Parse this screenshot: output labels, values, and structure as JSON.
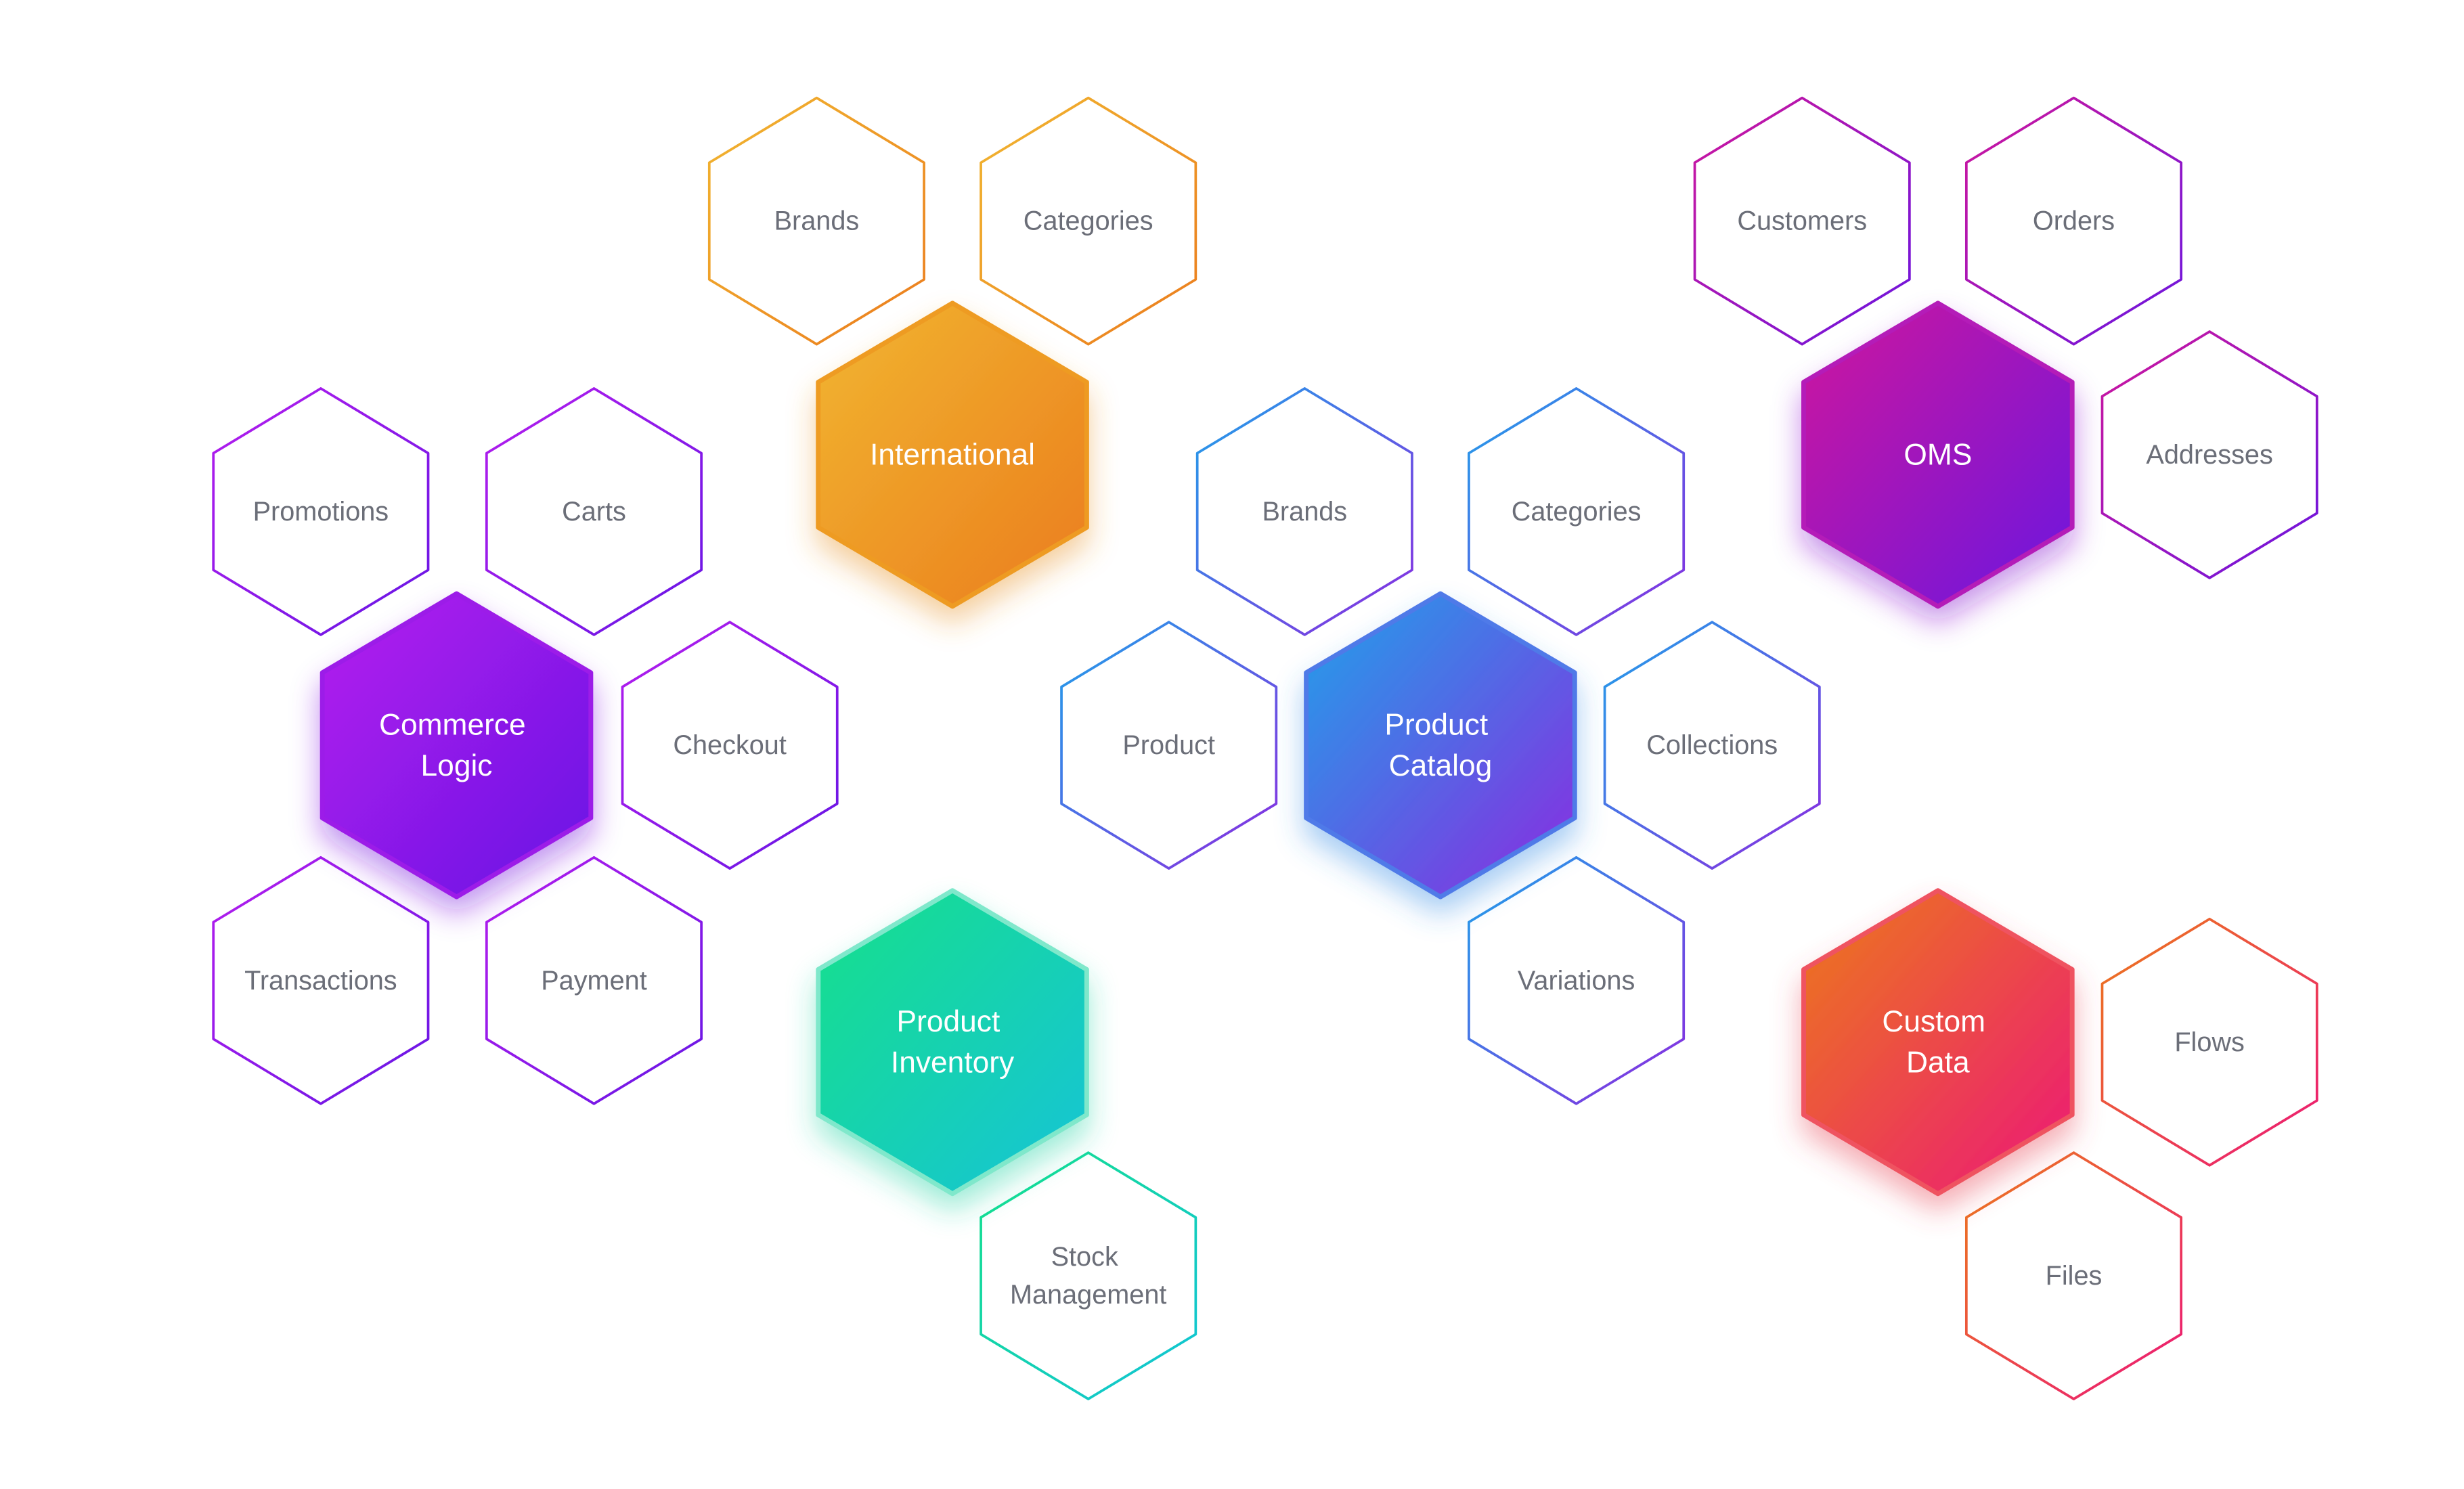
{
  "diagram": {
    "clusters": [
      {
        "id": "international",
        "core": {
          "lines": [
            "International"
          ]
        },
        "colors": {
          "start": "#f1b631",
          "end": "#eb7c1d",
          "border": "#ee9b24",
          "glow": "#e8952a"
        },
        "modules": [
          {
            "id": "intl-brands",
            "lines": [
              "Brands"
            ]
          },
          {
            "id": "intl-categories",
            "lines": [
              "Categories"
            ]
          }
        ]
      },
      {
        "id": "oms",
        "core": {
          "lines": [
            "OMS"
          ]
        },
        "colors": {
          "start": "#d0169c",
          "end": "#6a15e0",
          "border": "#b41ab8",
          "glow": "#8a1fd0"
        },
        "modules": [
          {
            "id": "oms-customers",
            "lines": [
              "Customers"
            ]
          },
          {
            "id": "oms-orders",
            "lines": [
              "Orders"
            ]
          },
          {
            "id": "oms-addresses",
            "lines": [
              "Addresses"
            ]
          }
        ]
      },
      {
        "id": "commerce-logic",
        "core": {
          "lines": [
            "Commerce",
            "Logic"
          ]
        },
        "colors": {
          "start": "#b51dee",
          "end": "#6716e4",
          "border": "#9c1be8",
          "glow": "#7a1ae0"
        },
        "modules": [
          {
            "id": "cl-promotions",
            "lines": [
              "Promotions"
            ]
          },
          {
            "id": "cl-carts",
            "lines": [
              "Carts"
            ]
          },
          {
            "id": "cl-checkout",
            "lines": [
              "Checkout"
            ]
          },
          {
            "id": "cl-transactions",
            "lines": [
              "Transactions"
            ]
          },
          {
            "id": "cl-payment",
            "lines": [
              "Payment"
            ]
          }
        ]
      },
      {
        "id": "product-catalog",
        "core": {
          "lines": [
            "Product",
            "Catalog"
          ]
        },
        "colors": {
          "start": "#1fa2ea",
          "end": "#8b2ae0",
          "border": "#4f7ae8",
          "glow": "#3a8fe6"
        },
        "modules": [
          {
            "id": "pc-brands",
            "lines": [
              "Brands"
            ]
          },
          {
            "id": "pc-categories",
            "lines": [
              "Categories"
            ]
          },
          {
            "id": "pc-product",
            "lines": [
              "Product"
            ]
          },
          {
            "id": "pc-collections",
            "lines": [
              "Collections"
            ]
          },
          {
            "id": "pc-variations",
            "lines": [
              "Variations"
            ]
          }
        ]
      },
      {
        "id": "product-inventory",
        "core": {
          "lines": [
            "Product",
            "Inventory"
          ]
        },
        "colors": {
          "start": "#14e08a",
          "end": "#12c3d8",
          "border": "#7fe8cb",
          "glow": "#2fd6a8"
        },
        "modules": [
          {
            "id": "pi-stock-management",
            "lines": [
              "Stock",
              "Management"
            ]
          }
        ]
      },
      {
        "id": "custom-data",
        "core": {
          "lines": [
            "Custom",
            "Data"
          ]
        },
        "colors": {
          "start": "#ec7a1a",
          "end": "#ec1778",
          "border": "#ef5260",
          "glow": "#e94a5a"
        },
        "modules": [
          {
            "id": "cd-flows",
            "lines": [
              "Flows"
            ]
          },
          {
            "id": "cd-files",
            "lines": [
              "Files"
            ]
          }
        ]
      }
    ]
  }
}
